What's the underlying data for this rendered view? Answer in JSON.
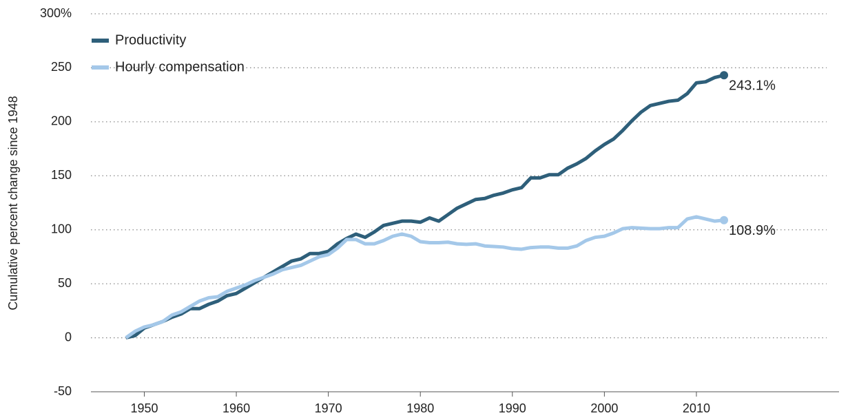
{
  "chart_data": {
    "type": "line",
    "y_label": "Cumulative percent change since 1948",
    "x": [
      1948,
      1949,
      1950,
      1951,
      1952,
      1953,
      1954,
      1955,
      1956,
      1957,
      1958,
      1959,
      1960,
      1961,
      1962,
      1963,
      1964,
      1965,
      1966,
      1967,
      1968,
      1969,
      1970,
      1971,
      1972,
      1973,
      1974,
      1975,
      1976,
      1977,
      1978,
      1979,
      1980,
      1981,
      1982,
      1983,
      1984,
      1985,
      1986,
      1987,
      1988,
      1989,
      1990,
      1991,
      1992,
      1993,
      1994,
      1995,
      1996,
      1997,
      1998,
      1999,
      2000,
      2001,
      2002,
      2003,
      2004,
      2005,
      2006,
      2007,
      2008,
      2009,
      2010,
      2011,
      2012,
      2013
    ],
    "series": [
      {
        "name": "Productivity",
        "color": "#2e5f7a",
        "end_label": "243.1%",
        "values": [
          0,
          2,
          9,
          12,
          15,
          19,
          22,
          27,
          27,
          31,
          34,
          39,
          41,
          46,
          51,
          56,
          61,
          66,
          71,
          73,
          78,
          78,
          80,
          87,
          92,
          96,
          93,
          98,
          104,
          106,
          108,
          108,
          107,
          111,
          108,
          114,
          120,
          124,
          128,
          129,
          132,
          134,
          137,
          139,
          148,
          148,
          151,
          151,
          157,
          161,
          166,
          173,
          179,
          184,
          192,
          201,
          209,
          215,
          217,
          219,
          220,
          226,
          236,
          237,
          241,
          243.1
        ]
      },
      {
        "name": "Hourly compensation",
        "color": "#a4c8e9",
        "end_label": "108.9%",
        "values": [
          0,
          6,
          10,
          12,
          15,
          21,
          24,
          29,
          34,
          37,
          38,
          43,
          46,
          49,
          53,
          56,
          59,
          63,
          65,
          67,
          71,
          75,
          77,
          83,
          91,
          91,
          87,
          87,
          90,
          94,
          96,
          94,
          89,
          88,
          88,
          88.5,
          87,
          86.5,
          87,
          85,
          84.5,
          84,
          82.5,
          82,
          83.5,
          84,
          84,
          83,
          83,
          85,
          90,
          93,
          94,
          97,
          101,
          102,
          101.5,
          101,
          101,
          102,
          102,
          110,
          112,
          110,
          108,
          108.9
        ]
      }
    ],
    "xlim": [
      1944.2,
      2025.5
    ],
    "xticks": [
      1950,
      1960,
      1970,
      1980,
      1990,
      2000,
      2010
    ],
    "ylim": [
      -50,
      300
    ],
    "yticks": [
      -50,
      0,
      50,
      100,
      150,
      {
        "value": 300,
        "label": "300%"
      },
      200,
      250
    ],
    "grid": true,
    "legend": "upper left"
  }
}
